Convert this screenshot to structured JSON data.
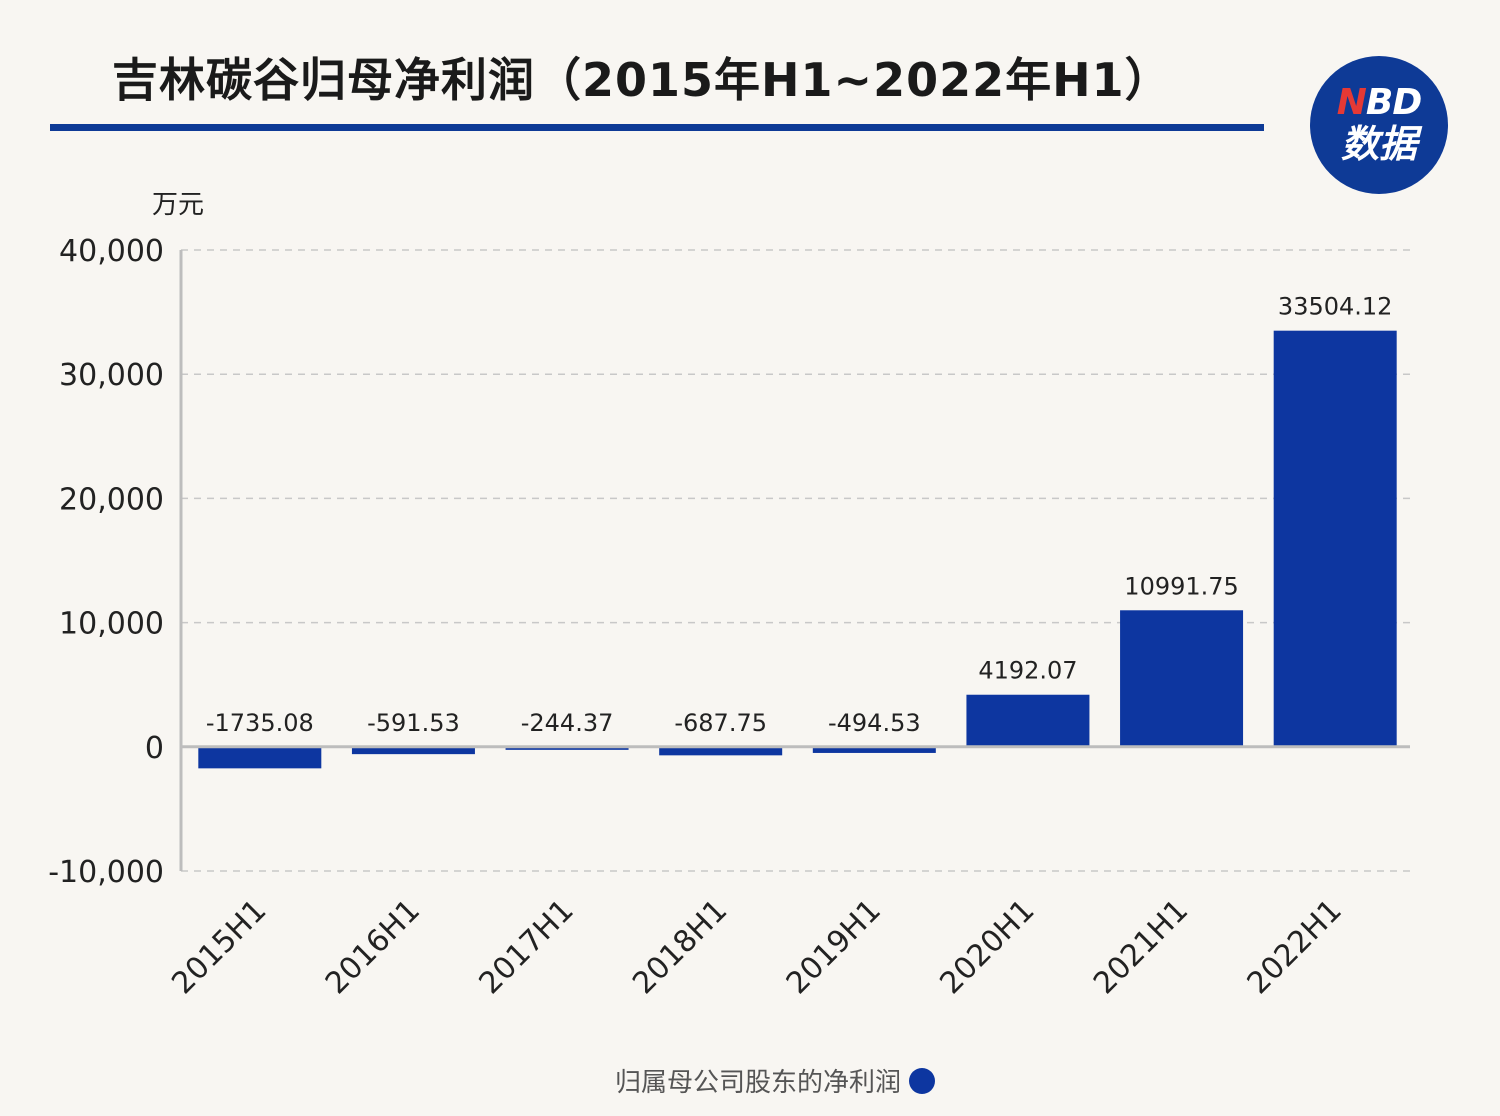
{
  "title": "吉林碳谷归母净利润（2015年H1~2022年H1）",
  "logo": {
    "line1_n": "N",
    "line1_rest": "BD",
    "line2": "数据"
  },
  "legend_label": "归属母公司股东的净利润",
  "colors": {
    "bar": "#0d36a0",
    "rule": "#0e3a96",
    "grid": "#c8c8c8",
    "axis": "#bdbdbd"
  },
  "chart_data": {
    "type": "bar",
    "title": "吉林碳谷归母净利润（2015年H1~2022年H1）",
    "ylabel": "万元",
    "xlabel": "",
    "categories": [
      "2015H1",
      "2016H1",
      "2017H1",
      "2018H1",
      "2019H1",
      "2020H1",
      "2021H1",
      "2022H1"
    ],
    "series": [
      {
        "name": "归属母公司股东的净利润",
        "values": [
          -1735.08,
          -591.53,
          -244.37,
          -687.75,
          -494.53,
          4192.07,
          10991.75,
          33504.12
        ],
        "labels": [
          "-1735.08",
          "-591.53",
          "-244.37",
          "-687.75",
          "-494.53",
          "4192.07",
          "10991.75",
          "33504.12"
        ]
      }
    ],
    "ylim": [
      -10000,
      40000
    ],
    "yticks": [
      -10000,
      0,
      10000,
      20000,
      30000,
      40000
    ],
    "ytick_labels": [
      "-10,000",
      "0",
      "10,000",
      "20,000",
      "30,000",
      "40,000"
    ],
    "grid": true,
    "legend": "bottom"
  }
}
